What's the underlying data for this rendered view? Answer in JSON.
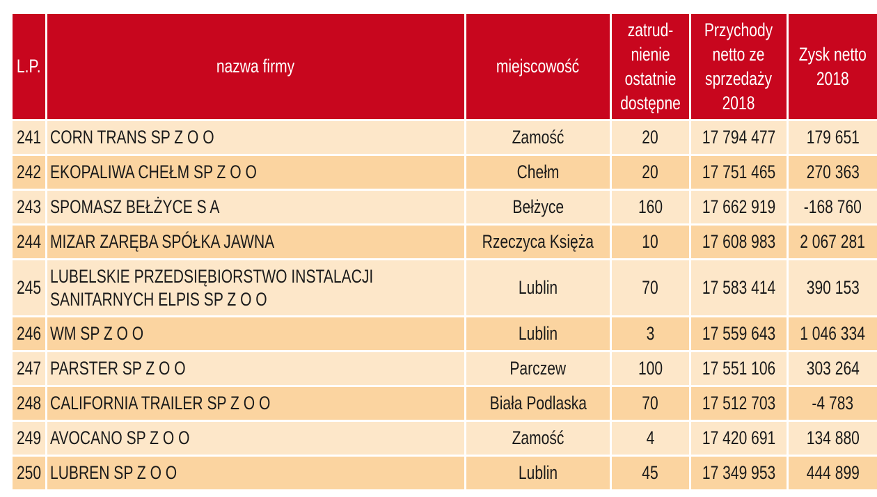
{
  "headers": {
    "lp": "L.P.",
    "name": "nazwa firmy",
    "city": "miejscowość",
    "employment": [
      "zatrud-",
      "nienie",
      "ostatnie",
      "dostępne"
    ],
    "revenue": [
      "Przychody",
      "netto ze",
      "sprzedaży",
      "2018"
    ],
    "profit": [
      "Zysk netto",
      "2018"
    ]
  },
  "rows": [
    {
      "lp": "241",
      "name": [
        "CORN TRANS SP Z O O"
      ],
      "city": "Zamość",
      "employment": "20",
      "revenue": "17 794 477",
      "profit": "179 651"
    },
    {
      "lp": "242",
      "name": [
        "EKOPALIWA CHEŁM SP Z O O"
      ],
      "city": "Chełm",
      "employment": "20",
      "revenue": "17 751 465",
      "profit": "270 363"
    },
    {
      "lp": "243",
      "name": [
        "SPOMASZ BEŁŻYCE S A"
      ],
      "city": "Bełżyce",
      "employment": "160",
      "revenue": "17 662 919",
      "profit": "-168 760"
    },
    {
      "lp": "244",
      "name": [
        "MIZAR ZARĘBA SPÓŁKA JAWNA"
      ],
      "city": "Rzeczyca Księża",
      "employment": "10",
      "revenue": "17 608 983",
      "profit": "2 067 281"
    },
    {
      "lp": "245",
      "name": [
        "LUBELSKIE PRZEDSIĘBIORSTWO INSTALACJI",
        "SANITARNYCH ELPIS SP Z O O"
      ],
      "city": "Lublin",
      "employment": "70",
      "revenue": "17 583 414",
      "profit": "390 153"
    },
    {
      "lp": "246",
      "name": [
        "WM SP Z O O"
      ],
      "city": "Lublin",
      "employment": "3",
      "revenue": "17 559 643",
      "profit": "1 046 334"
    },
    {
      "lp": "247",
      "name": [
        "PARSTER SP Z O O"
      ],
      "city": "Parczew",
      "employment": "100",
      "revenue": "17 551 106",
      "profit": "303 264"
    },
    {
      "lp": "248",
      "name": [
        "CALIFORNIA TRAILER SP Z O O"
      ],
      "city": "Biała Podlaska",
      "employment": "70",
      "revenue": "17 512 703",
      "profit": "-4 783"
    },
    {
      "lp": "249",
      "name": [
        "AVOCANO SP Z O O"
      ],
      "city": "Zamość",
      "employment": "4",
      "revenue": "17 420 691",
      "profit": "134 880"
    },
    {
      "lp": "250",
      "name": [
        "LUBREN SP Z O O"
      ],
      "city": "Lublin",
      "employment": "45",
      "revenue": "17 349 953",
      "profit": "444 899"
    }
  ],
  "colors": {
    "header": "#c8061e",
    "row_light": "#fde7c9",
    "row_dark": "#fbd4a0"
  }
}
